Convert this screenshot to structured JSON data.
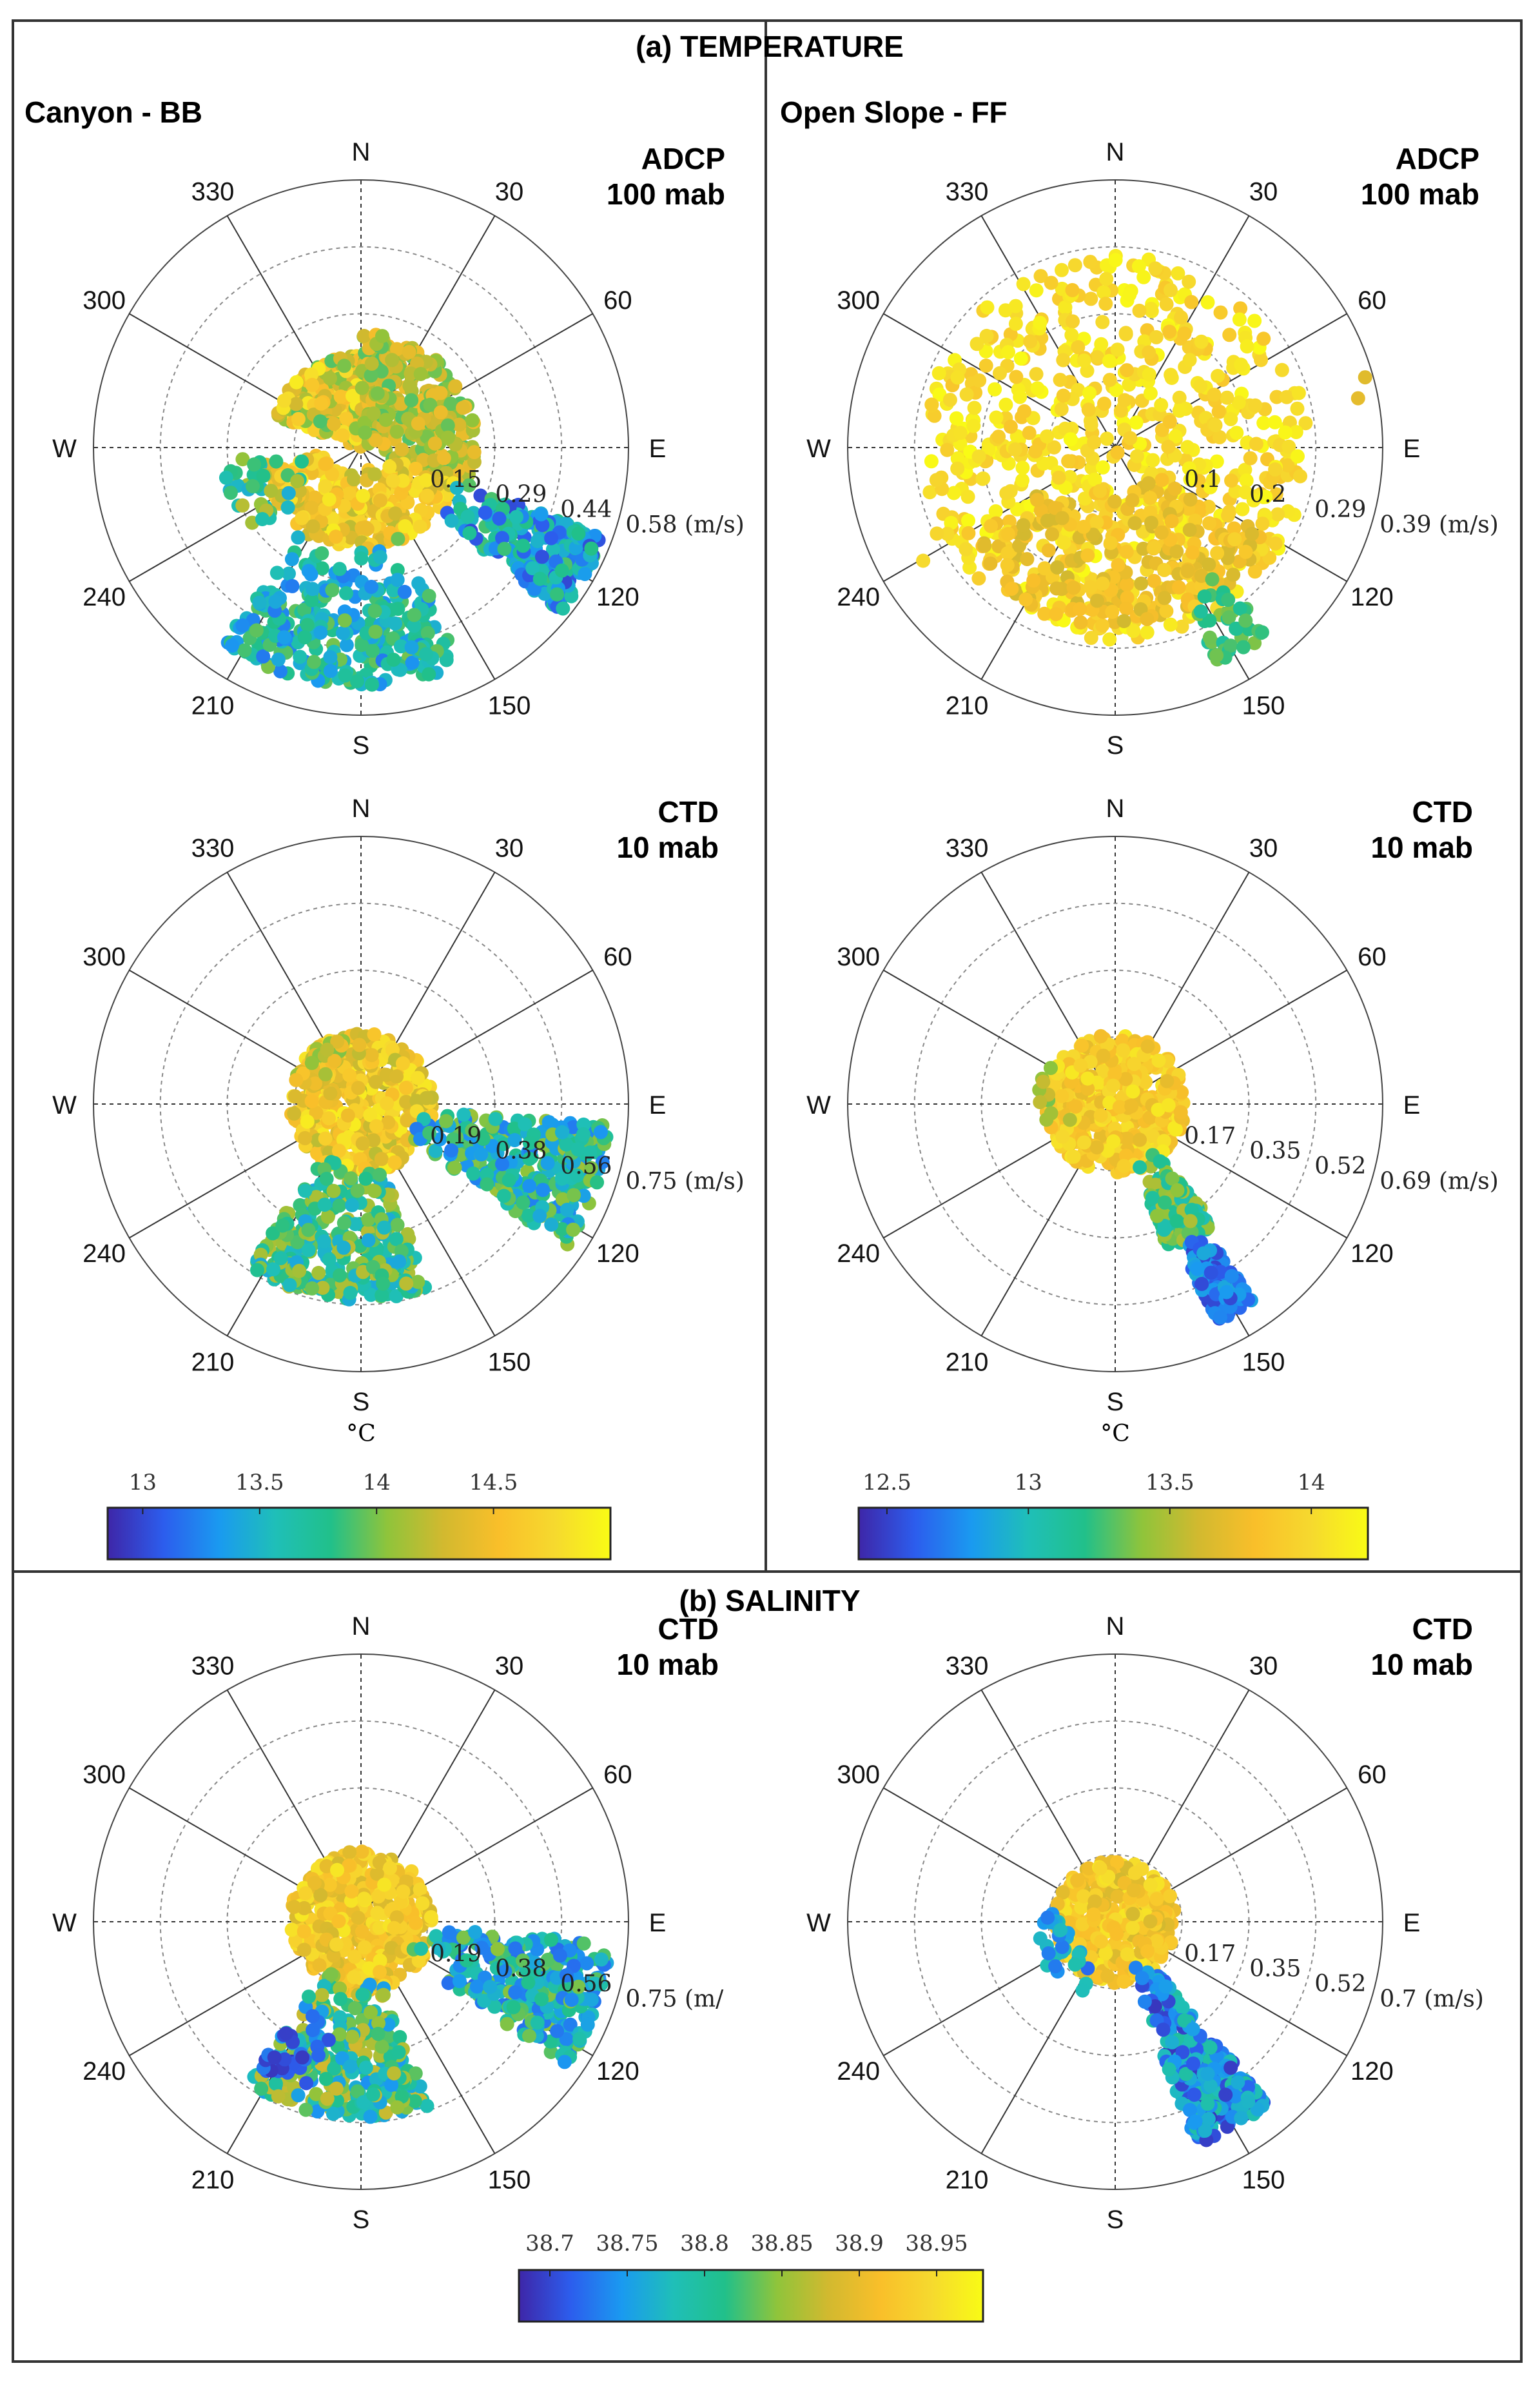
{
  "figure": {
    "section_a_title": "(a) TEMPERATURE",
    "section_b_title": "(b) SALINITY",
    "left_column_title": "Canyon - BB",
    "right_column_title": "Open Slope - FF",
    "temperature_unit": "°C",
    "speed_unit": "(m/s)"
  },
  "colormap": [
    "#3e26a8",
    "#2c5ded",
    "#1a9af0",
    "#1fbfb8",
    "#21c08a",
    "#8fc43b",
    "#d2b92f",
    "#f9bf2a",
    "#f6d92e",
    "#f9fb15"
  ],
  "chart_data": [
    {
      "id": "temp_bb_adcp",
      "type": "scatter",
      "subtype": "polar",
      "variable": "temperature",
      "site": "Canyon - BB",
      "instrument": "ADCP",
      "depth": "100 mab",
      "directions": [
        "N",
        "30",
        "60",
        "E",
        "120",
        "150",
        "S",
        "210",
        "240",
        "W",
        "300",
        "330"
      ],
      "radial_ticks": [
        "0.15",
        "0.29",
        "0.44",
        "0.58 (m/s)"
      ],
      "rmax": 0.58,
      "color_range": [
        12.85,
        15.0
      ],
      "clusters": [
        {
          "dir_range": [
            290,
            360
          ],
          "speed_range": [
            0.0,
            0.2
          ],
          "color_range": [
            13.9,
            14.9
          ],
          "count": 320
        },
        {
          "dir_range": [
            0,
            110
          ],
          "speed_range": [
            0.0,
            0.25
          ],
          "color_range": [
            13.9,
            14.5
          ],
          "count": 320
        },
        {
          "dir_range": [
            110,
            260
          ],
          "speed_range": [
            0.05,
            0.22
          ],
          "color_range": [
            14.2,
            14.9
          ],
          "count": 260
        },
        {
          "dir_range": [
            110,
            130
          ],
          "speed_range": [
            0.2,
            0.56
          ],
          "color_range": [
            13.0,
            13.9
          ],
          "count": 260
        },
        {
          "dir_range": [
            155,
            215
          ],
          "speed_range": [
            0.2,
            0.52
          ],
          "color_range": [
            13.2,
            14.0
          ],
          "count": 300
        },
        {
          "dir_range": [
            230,
            265
          ],
          "speed_range": [
            0.1,
            0.3
          ],
          "color_range": [
            13.4,
            14.2
          ],
          "count": 40
        }
      ]
    },
    {
      "id": "temp_ff_adcp",
      "type": "scatter",
      "subtype": "polar",
      "variable": "temperature",
      "site": "Open Slope - FF",
      "instrument": "ADCP",
      "depth": "100 mab",
      "directions": [
        "N",
        "30",
        "60",
        "E",
        "120",
        "150",
        "S",
        "210",
        "240",
        "W",
        "300",
        "330"
      ],
      "radial_ticks": [
        "0.1",
        "0.2",
        "0.29",
        "0.39 (m/s)"
      ],
      "rmax": 0.39,
      "color_range": [
        12.4,
        14.2
      ],
      "clusters": [
        {
          "dir_range": [
            0,
            360
          ],
          "speed_range": [
            0.0,
            0.28
          ],
          "color_range": [
            13.85,
            14.2
          ],
          "count": 700
        },
        {
          "dir_range": [
            120,
            240
          ],
          "speed_range": [
            0.05,
            0.26
          ],
          "color_range": [
            13.6,
            13.95
          ],
          "count": 250
        },
        {
          "dir_range": [
            140,
            155
          ],
          "speed_range": [
            0.22,
            0.35
          ],
          "color_range": [
            13.1,
            13.4
          ],
          "count": 40
        },
        {
          "dir_range": [
            60,
            80
          ],
          "speed_range": [
            0.3,
            0.38
          ],
          "color_range": [
            13.5,
            13.8
          ],
          "count": 2
        },
        {
          "dir_range": [
            235,
            250
          ],
          "speed_range": [
            0.25,
            0.33
          ],
          "color_range": [
            13.9,
            14.1
          ],
          "count": 4
        }
      ]
    },
    {
      "id": "temp_bb_ctd",
      "type": "scatter",
      "subtype": "polar",
      "variable": "temperature",
      "site": "Canyon - BB",
      "instrument": "CTD",
      "depth": "10 mab",
      "directions": [
        "N",
        "30",
        "60",
        "E",
        "120",
        "150",
        "S",
        "210",
        "240",
        "W",
        "300",
        "330"
      ],
      "radial_ticks": [
        "0.19",
        "0.38",
        "0.56",
        "0.75 (m/s)"
      ],
      "rmax": 0.75,
      "color_range": [
        12.85,
        15.0
      ],
      "clusters": [
        {
          "dir_range": [
            0,
            360
          ],
          "speed_range": [
            0.0,
            0.2
          ],
          "color_range": [
            14.2,
            14.9
          ],
          "count": 450
        },
        {
          "dir_range": [
            95,
            125
          ],
          "speed_range": [
            0.15,
            0.7
          ],
          "color_range": [
            13.2,
            14.1
          ],
          "count": 300
        },
        {
          "dir_range": [
            160,
            215
          ],
          "speed_range": [
            0.15,
            0.55
          ],
          "color_range": [
            13.4,
            14.2
          ],
          "count": 320
        },
        {
          "dir_range": [
            290,
            345
          ],
          "speed_range": [
            0.1,
            0.2
          ],
          "color_range": [
            14.0,
            14.6
          ],
          "count": 40
        }
      ]
    },
    {
      "id": "temp_ff_ctd",
      "type": "scatter",
      "subtype": "polar",
      "variable": "temperature",
      "site": "Open Slope - FF",
      "instrument": "CTD",
      "depth": "10 mab",
      "directions": [
        "N",
        "30",
        "60",
        "E",
        "120",
        "150",
        "S",
        "210",
        "240",
        "W",
        "300",
        "330"
      ],
      "radial_ticks": [
        "0.17",
        "0.35",
        "0.52",
        "0.69 (m/s)"
      ],
      "rmax": 0.69,
      "color_range": [
        12.4,
        14.2
      ],
      "clusters": [
        {
          "dir_range": [
            0,
            360
          ],
          "speed_range": [
            0.0,
            0.18
          ],
          "color_range": [
            13.7,
            14.1
          ],
          "count": 450
        },
        {
          "dir_range": [
            140,
            160
          ],
          "speed_range": [
            0.15,
            0.4
          ],
          "color_range": [
            13.0,
            13.5
          ],
          "count": 180
        },
        {
          "dir_range": [
            145,
            155
          ],
          "speed_range": [
            0.4,
            0.62
          ],
          "color_range": [
            12.5,
            12.9
          ],
          "count": 120
        },
        {
          "dir_range": [
            250,
            300
          ],
          "speed_range": [
            0.12,
            0.2
          ],
          "color_range": [
            13.3,
            13.6
          ],
          "count": 10
        }
      ]
    },
    {
      "id": "sal_bb_ctd",
      "type": "scatter",
      "subtype": "polar",
      "variable": "salinity",
      "site": "Canyon - BB",
      "instrument": "CTD",
      "depth": "10 mab",
      "directions": [
        "N",
        "30",
        "60",
        "E",
        "120",
        "150",
        "S",
        "210",
        "240",
        "W",
        "300",
        "330"
      ],
      "radial_ticks": [
        "0.19",
        "0.38",
        "0.56",
        "0.75 (m/"
      ],
      "rmax": 0.75,
      "color_range": [
        38.68,
        38.98
      ],
      "clusters": [
        {
          "dir_range": [
            0,
            360
          ],
          "speed_range": [
            0.0,
            0.2
          ],
          "color_range": [
            38.88,
            38.96
          ],
          "count": 450
        },
        {
          "dir_range": [
            95,
            125
          ],
          "speed_range": [
            0.15,
            0.7
          ],
          "color_range": [
            38.72,
            38.85
          ],
          "count": 300
        },
        {
          "dir_range": [
            160,
            215
          ],
          "speed_range": [
            0.15,
            0.55
          ],
          "color_range": [
            38.74,
            38.88
          ],
          "count": 320
        },
        {
          "dir_range": [
            195,
            215
          ],
          "speed_range": [
            0.25,
            0.5
          ],
          "color_range": [
            38.69,
            38.73
          ],
          "count": 30
        }
      ]
    },
    {
      "id": "sal_ff_ctd",
      "type": "scatter",
      "subtype": "polar",
      "variable": "salinity",
      "site": "Open Slope - FF",
      "instrument": "CTD",
      "depth": "10 mab",
      "directions": [
        "N",
        "30",
        "60",
        "E",
        "120",
        "150",
        "S",
        "210",
        "240",
        "W",
        "300",
        "330"
      ],
      "radial_ticks": [
        "0.17",
        "0.35",
        "0.52",
        "0.7 (m/s)"
      ],
      "rmax": 0.7,
      "color_range": [
        38.68,
        38.98
      ],
      "clusters": [
        {
          "dir_range": [
            0,
            360
          ],
          "speed_range": [
            0.0,
            0.16
          ],
          "color_range": [
            38.88,
            38.96
          ],
          "count": 400
        },
        {
          "dir_range": [
            140,
            160
          ],
          "speed_range": [
            0.12,
            0.62
          ],
          "color_range": [
            38.69,
            38.8
          ],
          "count": 300
        },
        {
          "dir_range": [
            200,
            280
          ],
          "speed_range": [
            0.08,
            0.22
          ],
          "color_range": [
            38.72,
            38.8
          ],
          "count": 30
        }
      ]
    }
  ],
  "colorbars": [
    {
      "id": "cb_temp_bb",
      "label": "°C",
      "ticks": [
        "13",
        "13.5",
        "14",
        "14.5"
      ],
      "tick_values": [
        13,
        13.5,
        14,
        14.5
      ],
      "range": [
        12.85,
        15.0
      ]
    },
    {
      "id": "cb_temp_ff",
      "label": "°C",
      "ticks": [
        "12.5",
        "13",
        "13.5",
        "14"
      ],
      "tick_values": [
        12.5,
        13,
        13.5,
        14
      ],
      "range": [
        12.4,
        14.2
      ]
    },
    {
      "id": "cb_sal",
      "label": "",
      "ticks": [
        "38.7",
        "38.75",
        "38.8",
        "38.85",
        "38.9",
        "38.95"
      ],
      "tick_values": [
        38.7,
        38.75,
        38.8,
        38.85,
        38.9,
        38.95
      ],
      "range": [
        38.68,
        38.98
      ]
    }
  ]
}
